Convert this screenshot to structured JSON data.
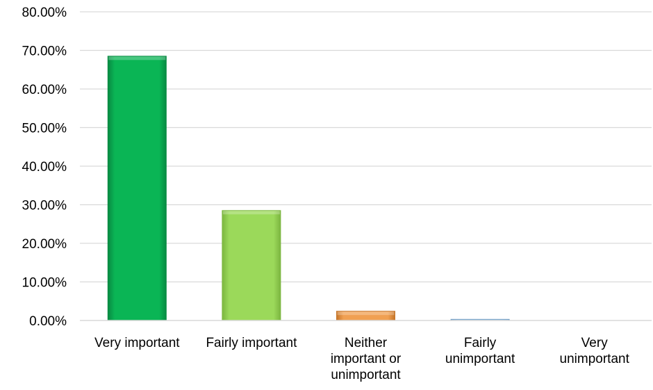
{
  "chart_data": {
    "type": "bar",
    "categories": [
      [
        "Very important"
      ],
      [
        "Fairly important"
      ],
      [
        "Neither",
        "important or",
        "unimportant"
      ],
      [
        "Fairly",
        "unimportant"
      ],
      [
        "Very",
        "unimportant"
      ]
    ],
    "values": [
      0.685,
      0.285,
      0.024,
      0.003,
      0.0
    ],
    "bar_colors": [
      "#0ab555",
      "#9bd95a",
      "#f0a052",
      "#9dc3e6",
      "#9dc3e6"
    ],
    "bar_edge_colors": [
      "#088a42",
      "#7cb640",
      "#c6762a",
      "#6e9cc4",
      "#6e9cc4"
    ],
    "ylim": [
      0,
      0.8
    ],
    "yticks": [
      0,
      0.1,
      0.2,
      0.3,
      0.4,
      0.5,
      0.6,
      0.7,
      0.8
    ],
    "ytick_labels": [
      "0.00%",
      "10.00%",
      "20.00%",
      "30.00%",
      "40.00%",
      "50.00%",
      "60.00%",
      "70.00%",
      "80.00%"
    ],
    "title": "",
    "xlabel": "",
    "ylabel": "",
    "grid": true,
    "legend": "none"
  }
}
